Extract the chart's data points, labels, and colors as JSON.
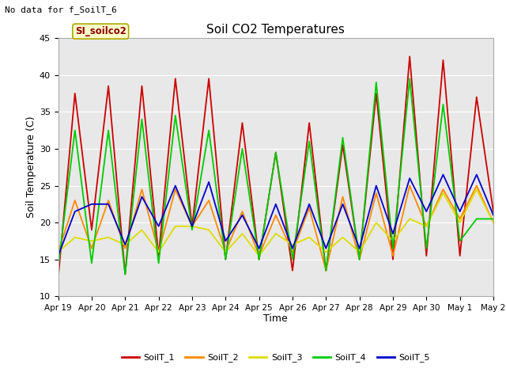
{
  "title": "Soil CO2 Temperatures",
  "xlabel": "Time",
  "ylabel": "Soil Temperature (C)",
  "no_data_text": "No data for f_SoilT_6",
  "site_label": "SI_soilco2",
  "ylim": [
    10,
    45
  ],
  "xlim": [
    0,
    13
  ],
  "x_tick_labels": [
    "Apr 19",
    "Apr 20",
    "Apr 21",
    "Apr 22",
    "Apr 23",
    "Apr 24",
    "Apr 25",
    "Apr 26",
    "Apr 27",
    "Apr 28",
    "Apr 29",
    "Apr 30",
    "May 1",
    "May 2"
  ],
  "colors": {
    "SoilT_1": "#cc0000",
    "SoilT_2": "#ff8800",
    "SoilT_3": "#dddd00",
    "SoilT_4": "#00cc00",
    "SoilT_5": "#0000cc"
  },
  "background_gray": "#e8e8e8",
  "grid_color": "#ffffff",
  "series": {
    "SoilT_1": [
      12.5,
      37.5,
      19.0,
      38.5,
      13.0,
      38.5,
      15.5,
      39.5,
      19.5,
      39.5,
      15.0,
      33.5,
      15.0,
      29.5,
      13.5,
      33.5,
      13.5,
      30.5,
      15.0,
      37.5,
      15.0,
      42.5,
      15.5,
      42.0,
      15.5,
      37.0,
      21.5
    ],
    "SoilT_2": [
      16.0,
      23.0,
      16.5,
      23.0,
      16.5,
      24.5,
      16.0,
      24.5,
      19.5,
      23.0,
      16.0,
      21.5,
      15.5,
      21.0,
      16.0,
      22.0,
      13.5,
      23.5,
      15.0,
      24.0,
      15.5,
      25.0,
      19.5,
      24.5,
      20.5,
      25.0,
      20.0
    ],
    "SoilT_3": [
      16.0,
      18.0,
      17.5,
      18.0,
      17.0,
      19.0,
      16.0,
      19.5,
      19.5,
      19.0,
      16.0,
      18.5,
      15.5,
      18.5,
      17.0,
      18.0,
      16.0,
      18.0,
      16.0,
      20.0,
      17.5,
      20.5,
      19.5,
      24.0,
      20.0,
      24.5,
      20.0
    ],
    "SoilT_4": [
      14.0,
      32.5,
      14.5,
      32.5,
      13.0,
      34.0,
      14.5,
      34.5,
      19.0,
      32.5,
      15.0,
      30.0,
      15.0,
      29.5,
      15.0,
      31.0,
      13.5,
      31.5,
      15.0,
      39.0,
      16.5,
      39.5,
      16.5,
      36.0,
      17.5,
      20.5,
      20.5
    ],
    "SoilT_5": [
      15.5,
      21.5,
      22.5,
      22.5,
      17.0,
      23.5,
      19.5,
      25.0,
      19.5,
      25.5,
      17.5,
      21.0,
      16.5,
      22.5,
      16.5,
      22.5,
      16.5,
      22.5,
      16.5,
      25.0,
      18.5,
      26.0,
      21.5,
      26.5,
      21.5,
      26.5,
      21.0
    ]
  },
  "yticks": [
    10,
    15,
    20,
    25,
    30,
    35,
    40,
    45
  ],
  "legend_colors": [
    "#cc0000",
    "#ff8800",
    "#dddd00",
    "#00cc00",
    "#0000cc"
  ],
  "legend_labels": [
    "SoilT_1",
    "SoilT_2",
    "SoilT_3",
    "SoilT_4",
    "SoilT_5"
  ]
}
